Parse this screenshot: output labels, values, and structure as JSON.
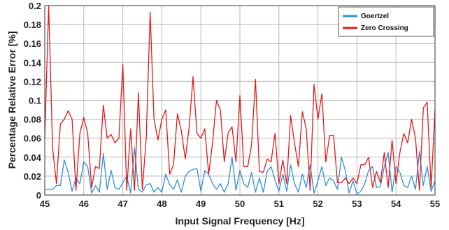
{
  "chart_data": {
    "type": "line",
    "xlabel": "Input Signal Frequency [Hz]",
    "ylabel": "Percentage Relative Error [%]",
    "xlim": [
      45,
      55
    ],
    "ylim": [
      0,
      0.2
    ],
    "xticks": [
      45,
      46,
      47,
      48,
      49,
      50,
      51,
      52,
      53,
      54,
      55
    ],
    "yticks": [
      0,
      0.02,
      0.04,
      0.06,
      0.08,
      0.1,
      0.12,
      0.14,
      0.16,
      0.18,
      0.2
    ],
    "ytick_labels": [
      "0",
      "0.02",
      "0.04",
      "0.06",
      "0.08",
      "0.1",
      "0.12",
      "0.14",
      "0.16",
      "0.18",
      "0.2"
    ],
    "grid": true,
    "legend_position": "top-right",
    "x": [
      45.0,
      45.1,
      45.2,
      45.3,
      45.4,
      45.5,
      45.6,
      45.7,
      45.8,
      45.9,
      46.0,
      46.1,
      46.2,
      46.3,
      46.4,
      46.5,
      46.6,
      46.7,
      46.8,
      46.9,
      47.0,
      47.1,
      47.2,
      47.3,
      47.4,
      47.5,
      47.6,
      47.7,
      47.8,
      47.9,
      48.0,
      48.1,
      48.2,
      48.3,
      48.4,
      48.5,
      48.6,
      48.7,
      48.8,
      48.9,
      49.0,
      49.1,
      49.2,
      49.3,
      49.4,
      49.5,
      49.6,
      49.7,
      49.8,
      49.9,
      50.0,
      50.1,
      50.2,
      50.3,
      50.4,
      50.5,
      50.6,
      50.7,
      50.8,
      50.9,
      51.0,
      51.1,
      51.2,
      51.3,
      51.4,
      51.5,
      51.6,
      51.7,
      51.8,
      51.9,
      52.0,
      52.1,
      52.2,
      52.3,
      52.4,
      52.5,
      52.6,
      52.7,
      52.8,
      52.9,
      53.0,
      53.1,
      53.2,
      53.3,
      53.4,
      53.5,
      53.6,
      53.7,
      53.8,
      53.9,
      54.0,
      54.1,
      54.2,
      54.3,
      54.4,
      54.5,
      54.6,
      54.7,
      54.8,
      54.9,
      55.0
    ],
    "series": [
      {
        "name": "Goertzel",
        "color": "#2f8fd8",
        "values": [
          0.006,
          0.006,
          0.006,
          0.01,
          0.01,
          0.037,
          0.024,
          0.004,
          0.018,
          0.012,
          0.035,
          0.03,
          0.002,
          0.01,
          0.003,
          0.044,
          0.006,
          0.026,
          0.008,
          0.006,
          0.013,
          0.02,
          0.002,
          0.05,
          0.006,
          0.003,
          0.011,
          0.012,
          0.003,
          0.008,
          0.003,
          0.022,
          0.011,
          0.006,
          0.016,
          0.003,
          0.02,
          0.025,
          0.027,
          0.028,
          0.004,
          0.026,
          0.022,
          0.012,
          0.006,
          0.012,
          0.003,
          0.012,
          0.04,
          0.005,
          0.026,
          0.012,
          0.008,
          0.024,
          0.003,
          0.018,
          0.003,
          0.025,
          0.03,
          0.016,
          0.004,
          0.022,
          0.004,
          0.032,
          0.012,
          0.003,
          0.022,
          0.008,
          0.032,
          0.002,
          0.015,
          0.03,
          0.01,
          0.018,
          0.015,
          0.006,
          0.04,
          0.026,
          0.002,
          0.015,
          0.001,
          0.004,
          0.012,
          0.026,
          0.03,
          0.008,
          0.009,
          0.03,
          0.045,
          0.003,
          0.03,
          0.024,
          0.01,
          0.008,
          0.02,
          0.006,
          0.046,
          0.01,
          0.03,
          0.004,
          0.015
        ]
      },
      {
        "name": "Zero Crossing",
        "color": "#e01b1b",
        "values": [
          0.06,
          0.2,
          0.05,
          0.012,
          0.075,
          0.08,
          0.089,
          0.08,
          0.005,
          0.065,
          0.082,
          0.065,
          0.008,
          0.03,
          0.028,
          0.095,
          0.06,
          0.064,
          0.055,
          0.06,
          0.138,
          0.005,
          0.07,
          0.005,
          0.108,
          0.006,
          0.06,
          0.193,
          0.08,
          0.058,
          0.08,
          0.09,
          0.022,
          0.032,
          0.086,
          0.068,
          0.038,
          0.072,
          0.125,
          0.065,
          0.06,
          0.07,
          0.022,
          0.055,
          0.1,
          0.09,
          0.035,
          0.066,
          0.072,
          0.035,
          0.105,
          0.03,
          0.03,
          0.053,
          0.122,
          0.025,
          0.024,
          0.038,
          0.035,
          0.065,
          0.012,
          0.037,
          0.012,
          0.084,
          0.055,
          0.03,
          0.088,
          0.07,
          0.005,
          0.117,
          0.08,
          0.107,
          0.035,
          0.063,
          0.063,
          0.013,
          0.013,
          0.018,
          0.012,
          0.018,
          0.012,
          0.032,
          0.032,
          0.04,
          0.008,
          0.025,
          0.013,
          0.045,
          0.008,
          0.058,
          0.012,
          0.045,
          0.065,
          0.055,
          0.08,
          0.06,
          0.005,
          0.092,
          0.098,
          0.008,
          0.09
        ]
      }
    ]
  }
}
